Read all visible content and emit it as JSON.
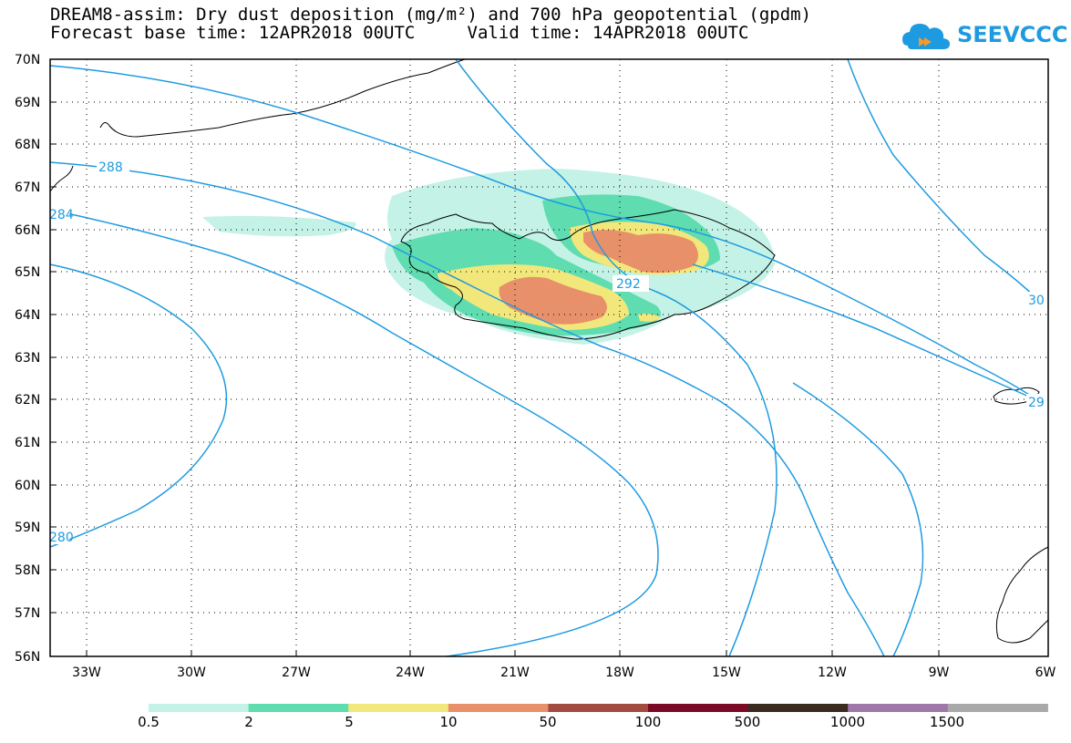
{
  "header": {
    "title_line1": "DREAM8-assim: Dry dust deposition (mg/m²) and 700 hPa geopotential (gpdm)",
    "title_line2": "Forecast base time: 12APR2018 00UTC     Valid time: 14APR2018 00UTC"
  },
  "logo": {
    "text": "SEEVCCC"
  },
  "map": {
    "lat_labels": [
      "70N",
      "69N",
      "68N",
      "67N",
      "66N",
      "65N",
      "64N",
      "63N",
      "62N",
      "61N",
      "60N",
      "59N",
      "58N",
      "57N",
      "56N"
    ],
    "lon_labels": [
      "33W",
      "30W",
      "27W",
      "24W",
      "21W",
      "18W",
      "15W",
      "12W",
      "9W",
      "6W"
    ],
    "contour_labels": [
      "288",
      "284",
      "292",
      "280",
      "30",
      "29"
    ]
  },
  "legend": {
    "labels": [
      "0.5",
      "2",
      "5",
      "10",
      "50",
      "100",
      "500",
      "1000",
      "1500"
    ],
    "colors": [
      "#c4f2e6",
      "#5fdcb0",
      "#f2e77a",
      "#e8906a",
      "#a24c3f",
      "#7a0a26",
      "#3b2a1f",
      "#9f77a8",
      "#a9a9a9"
    ]
  },
  "colors": {
    "contour": "#1e9be0"
  }
}
